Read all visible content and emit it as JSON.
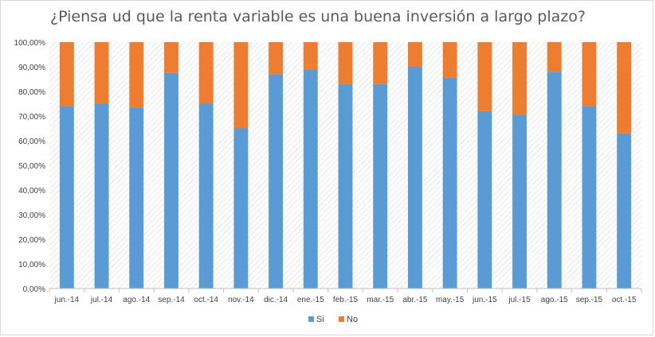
{
  "chart_data": {
    "type": "bar",
    "stacked": true,
    "title": "¿Piensa ud que la renta variable es una buena inversión a largo plazo?",
    "xlabel": "",
    "ylabel": "",
    "ylim": [
      0,
      100
    ],
    "y_ticks": [
      "0,00%",
      "10,00%",
      "20,00%",
      "30,00%",
      "40,00%",
      "50,00%",
      "60,00%",
      "70,00%",
      "80,00%",
      "90,00%",
      "100,00%"
    ],
    "categories": [
      "jun.-14",
      "jul.-14",
      "ago.-14",
      "sep.-14",
      "oct.-14",
      "nov.-14",
      "dic.-14",
      "ene.-15",
      "feb.-15",
      "mar.-15",
      "abr.-15",
      "may.-15",
      "jun.-15",
      "jul.-15",
      "ago.-15",
      "sep.-15",
      "oct.-15"
    ],
    "series": [
      {
        "name": "Si",
        "color": "#5b9bd5",
        "values": [
          74,
          75,
          73.5,
          87.5,
          75,
          65,
          87,
          89,
          83,
          83,
          90,
          85.5,
          72,
          70.5,
          88,
          74,
          63
        ]
      },
      {
        "name": "No",
        "color": "#ed7d31",
        "values": [
          26,
          25,
          26.5,
          12.5,
          25,
          35,
          13,
          11,
          17,
          17,
          10,
          14.5,
          28,
          29.5,
          12,
          26,
          37
        ]
      }
    ],
    "legend_position": "bottom",
    "grid": false
  }
}
